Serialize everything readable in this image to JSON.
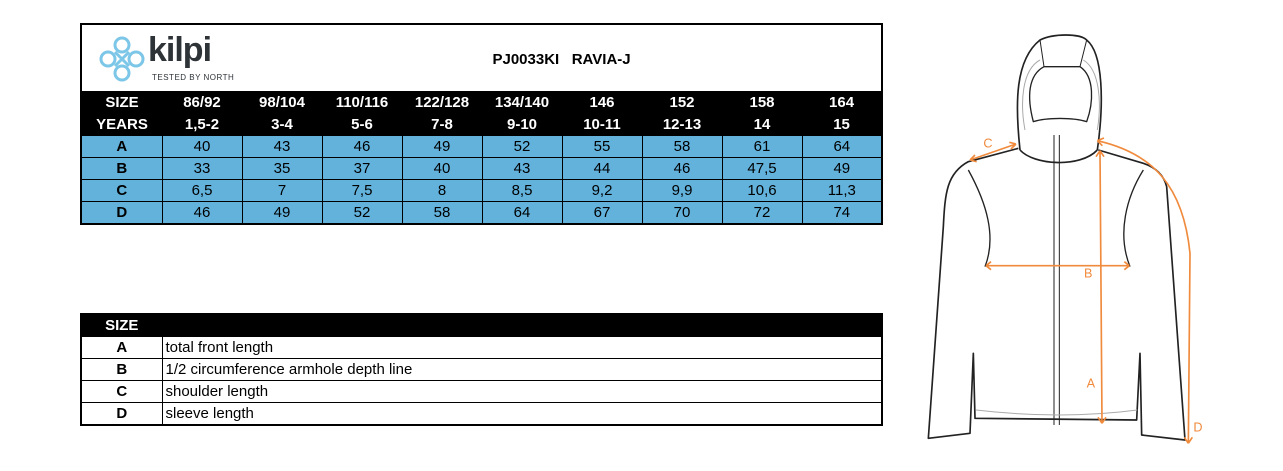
{
  "brand": {
    "name": "kilpi",
    "tagline": "TESTED BY NORTH"
  },
  "product": {
    "code": "PJ0033KI",
    "name": "RAVIA-J"
  },
  "size_table": {
    "row_labels": [
      "SIZE",
      "YEARS"
    ],
    "sizes": [
      "86/92",
      "98/104",
      "110/116",
      "122/128",
      "134/140",
      "146",
      "152",
      "158",
      "164"
    ],
    "years": [
      "1,5-2",
      "3-4",
      "5-6",
      "7-8",
      "9-10",
      "10-11",
      "12-13",
      "14",
      "15"
    ],
    "rows": [
      {
        "label": "A",
        "values": [
          "40",
          "43",
          "46",
          "49",
          "52",
          "55",
          "58",
          "61",
          "64"
        ]
      },
      {
        "label": "B",
        "values": [
          "33",
          "35",
          "37",
          "40",
          "43",
          "44",
          "46",
          "47,5",
          "49"
        ]
      },
      {
        "label": "C",
        "values": [
          "6,5",
          "7",
          "7,5",
          "8",
          "8,5",
          "9,2",
          "9,9",
          "10,6",
          "11,3"
        ]
      },
      {
        "label": "D",
        "values": [
          "46",
          "49",
          "52",
          "58",
          "64",
          "67",
          "70",
          "72",
          "74"
        ]
      }
    ]
  },
  "legend": {
    "header": "SIZE",
    "items": [
      {
        "label": "A",
        "desc": "total front  length"
      },
      {
        "label": "B",
        "desc": "1/2 circumference armhole depth line"
      },
      {
        "label": "C",
        "desc": "shoulder length"
      },
      {
        "label": "D",
        "desc": "sleeve length"
      }
    ]
  },
  "diagram": {
    "labels": [
      "A",
      "B",
      "C",
      "D"
    ],
    "accent": "#f08a3c",
    "table_fill": "#62b2dc"
  }
}
